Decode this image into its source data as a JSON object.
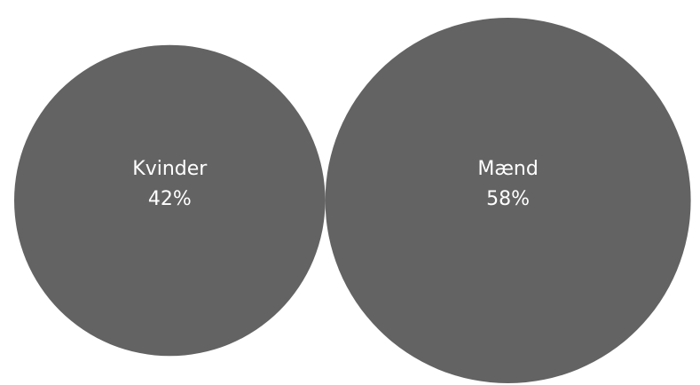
{
  "chart_data": {
    "type": "bubble",
    "categories": [
      "Kvinder",
      "Mænd"
    ],
    "values": [
      42,
      58
    ],
    "value_labels": [
      "42%",
      "58%"
    ],
    "color": "#636363",
    "label_color": "#ffffff",
    "grid": false,
    "legend": "none"
  }
}
